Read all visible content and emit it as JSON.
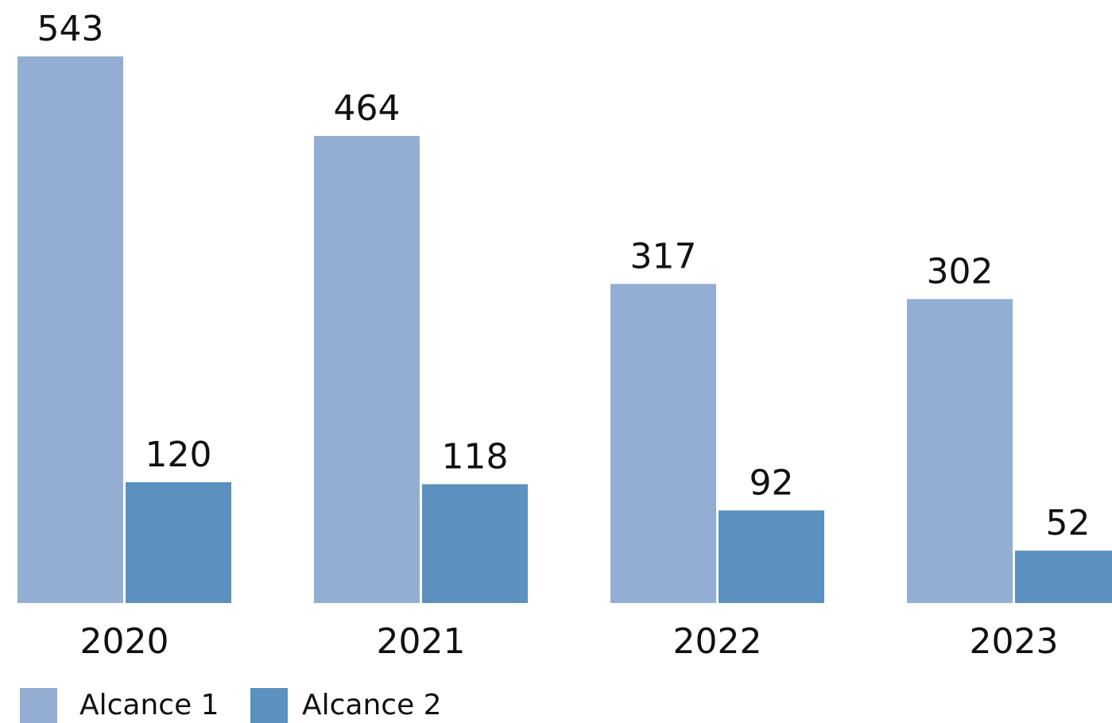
{
  "chart_data": {
    "type": "bar",
    "categories": [
      "2020",
      "2021",
      "2022",
      "2023"
    ],
    "series": [
      {
        "name": "Alcance 1",
        "color": "#94aed3",
        "values": [
          543,
          464,
          317,
          302
        ]
      },
      {
        "name": "Alcance 2",
        "color": "#5b90bf",
        "values": [
          120,
          118,
          92,
          52
        ]
      }
    ]
  }
}
